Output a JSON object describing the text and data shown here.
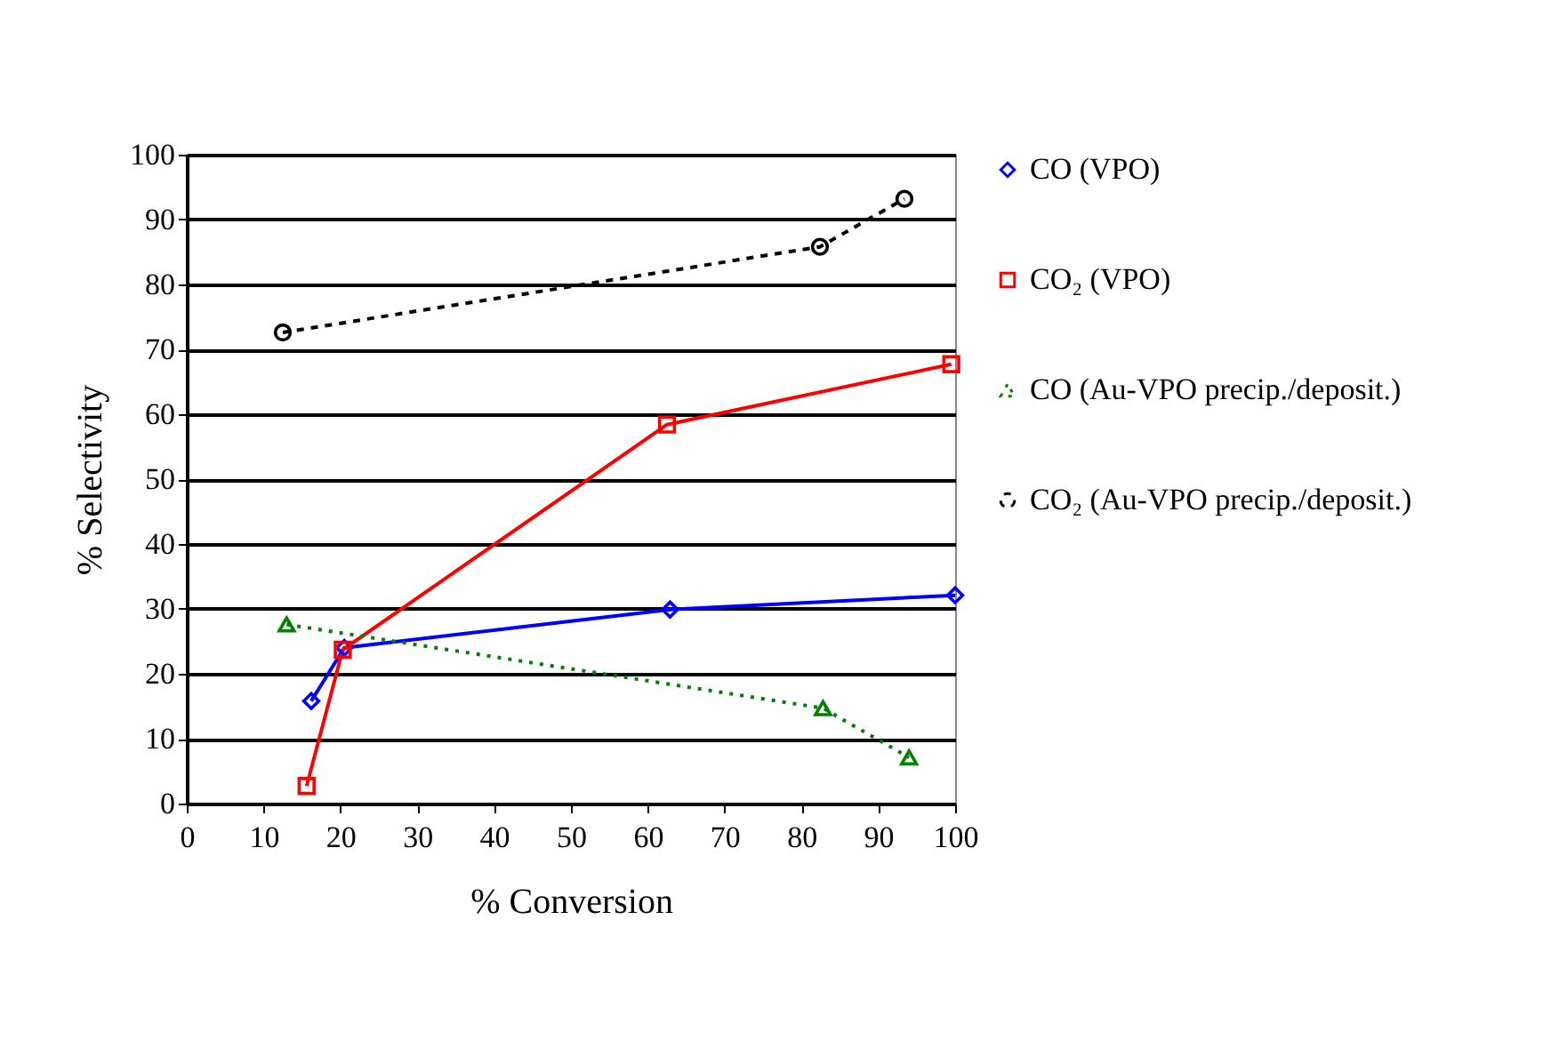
{
  "chart_data": {
    "type": "line",
    "xlabel": "% Conversion",
    "ylabel": "% Selectivity",
    "xlim": [
      0,
      100
    ],
    "xticks": [
      0,
      10,
      20,
      30,
      40,
      50,
      60,
      70,
      80,
      90,
      100
    ],
    "ylim": [
      0,
      100
    ],
    "yticks": [
      0,
      10,
      20,
      30,
      40,
      50,
      60,
      70,
      80,
      90,
      100
    ],
    "grid": "y",
    "legend": "right",
    "series": [
      {
        "name": "CO (VPO)",
        "color": "#0000ff",
        "marker": "diamond",
        "line_style": "solid",
        "x": [
          16.2,
          20.5,
          62.9,
          100
        ],
        "values": [
          15.8,
          24.0,
          29.9,
          32.1
        ]
      },
      {
        "name": "CO₂ (VPO)",
        "color": "#ff0000",
        "marker": "square",
        "line_style": "solid",
        "x": [
          15.6,
          20.3,
          62.5,
          99.5
        ],
        "values": [
          2.7,
          23.7,
          58.4,
          67.7
        ]
      },
      {
        "name": "CO (Au-VPO precip./deposit.)",
        "color": "#008000",
        "marker": "triangle",
        "line_style": "dotted",
        "x": [
          13.0,
          82.8,
          94.0
        ],
        "values": [
          27.6,
          14.7,
          7.1
        ]
      },
      {
        "name": "CO₂ (Au-VPO precip./deposit.)",
        "color": "#000000",
        "marker": "circle",
        "line_style": "dashed",
        "x": [
          12.5,
          82.4,
          93.4
        ],
        "values": [
          72.6,
          85.8,
          93.2
        ]
      }
    ]
  }
}
